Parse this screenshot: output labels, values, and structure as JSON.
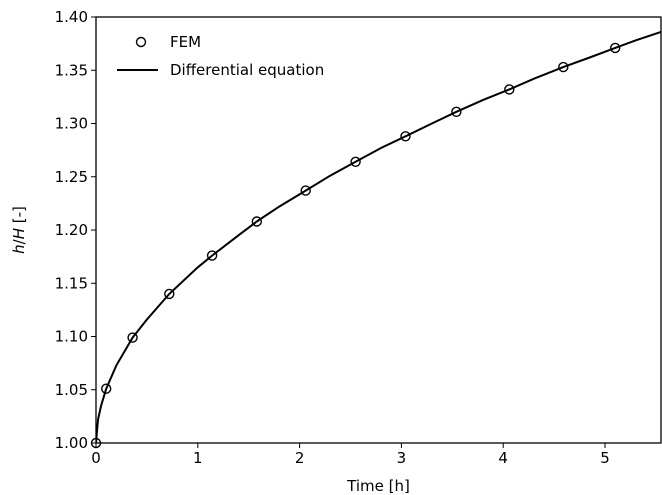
{
  "chart_data": {
    "type": "scatter",
    "title": "",
    "xlabel": "Time [h]",
    "ylabel_var1": "h",
    "ylabel_sep": "/",
    "ylabel_var2": "H",
    "ylabel_unit": " [-]",
    "xlim": [
      0,
      5.55
    ],
    "ylim": [
      1.0,
      1.4
    ],
    "xticks": [
      0,
      1,
      2,
      3,
      4,
      5
    ],
    "xtick_labels": [
      "0",
      "1",
      "2",
      "3",
      "4",
      "5"
    ],
    "yticks": [
      1.0,
      1.05,
      1.1,
      1.15,
      1.2,
      1.25,
      1.3,
      1.35,
      1.4
    ],
    "ytick_labels": [
      "1.00",
      "1.05",
      "1.10",
      "1.15",
      "1.20",
      "1.25",
      "1.30",
      "1.35",
      "1.40"
    ],
    "grid": false,
    "legend_position": "top-left",
    "series": [
      {
        "name": "FEM",
        "marker": "open-circle",
        "color": "#000000",
        "x": [
          0.0,
          0.1,
          0.36,
          0.72,
          1.14,
          1.58,
          2.06,
          2.55,
          3.04,
          3.54,
          4.06,
          4.59,
          5.1
        ],
        "y": [
          1.0,
          1.051,
          1.099,
          1.14,
          1.176,
          1.208,
          1.237,
          1.264,
          1.288,
          1.311,
          1.332,
          1.353,
          1.371
        ]
      },
      {
        "name": "Differential equation",
        "marker": "line",
        "color": "#000000",
        "x": [
          0.0,
          0.02,
          0.05,
          0.1,
          0.2,
          0.36,
          0.5,
          0.72,
          1.0,
          1.14,
          1.4,
          1.58,
          1.8,
          2.06,
          2.3,
          2.55,
          2.8,
          3.04,
          3.3,
          3.54,
          3.8,
          4.06,
          4.3,
          4.59,
          4.85,
          5.1,
          5.3,
          5.55
        ],
        "y": [
          1.0,
          1.022,
          1.035,
          1.051,
          1.073,
          1.099,
          1.116,
          1.14,
          1.165,
          1.176,
          1.195,
          1.208,
          1.222,
          1.237,
          1.251,
          1.264,
          1.277,
          1.288,
          1.3,
          1.311,
          1.322,
          1.332,
          1.342,
          1.353,
          1.362,
          1.371,
          1.378,
          1.386
        ]
      }
    ]
  }
}
